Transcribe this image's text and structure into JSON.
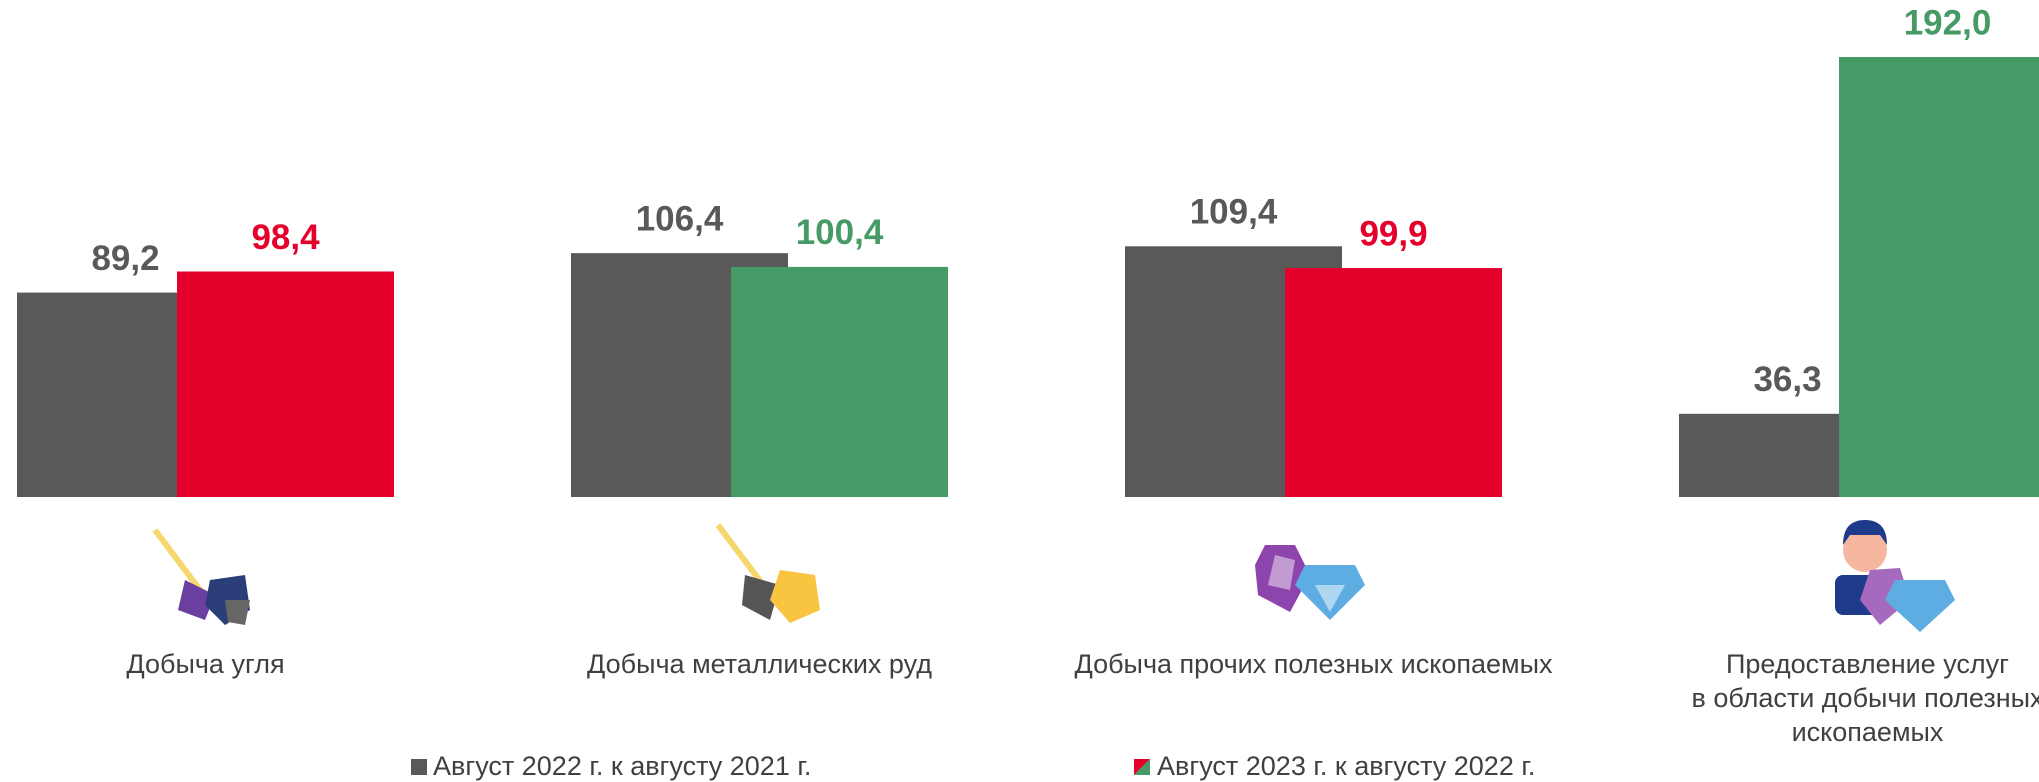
{
  "chart_data": {
    "type": "bar",
    "categories": [
      [
        "Добыча угля"
      ],
      [
        "Добыча металлических руд"
      ],
      [
        "Добыча прочих полезных ископаемых"
      ],
      [
        "Предоставление услуг",
        "в области добычи полезных",
        "ископаемых"
      ]
    ],
    "series": [
      {
        "name": "Август 2022 г. к августу 2021 г.",
        "color": "#595959",
        "values": [
          89.2,
          106.4,
          109.4,
          36.3
        ],
        "value_labels": [
          "89,2",
          "106,4",
          "109,4",
          "36,3"
        ]
      },
      {
        "name": "Август 2023 г. к августу 2022 г.",
        "colors": [
          "#e4002b",
          "#459a65",
          "#e4002b",
          "#459a65"
        ],
        "values": [
          98.4,
          100.4,
          99.9,
          192.0
        ],
        "value_labels": [
          "98,4",
          "100,4",
          "99,9",
          "192,0"
        ]
      }
    ]
  }
}
